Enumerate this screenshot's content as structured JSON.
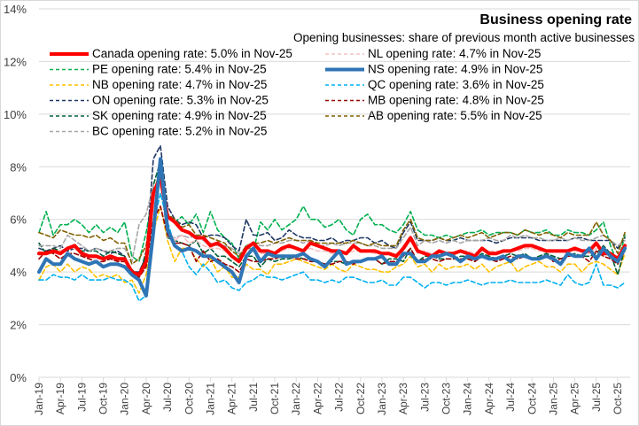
{
  "chart_data": {
    "type": "line",
    "title": "Business opening rate",
    "subtitle": "Opening businesses: share of previous month active businesses",
    "xlabel": "",
    "ylabel": "",
    "ylim": [
      0,
      14
    ],
    "y_ticks": [
      0,
      2,
      4,
      6,
      8,
      10,
      12,
      14
    ],
    "y_tick_labels": [
      "0%",
      "2%",
      "4%",
      "6%",
      "8%",
      "10%",
      "12%",
      "14%"
    ],
    "x_start": "Jan-19",
    "x_end": "Nov-25",
    "n_points": 83,
    "x_tick_labels": [
      "Jan-19",
      "Apr-19",
      "Jul-19",
      "Oct-19",
      "Jan-20",
      "Apr-20",
      "Jul-20",
      "Oct-20",
      "Jan-21",
      "Apr-21",
      "Jul-21",
      "Oct-21",
      "Jan-22",
      "Apr-22",
      "Jul-22",
      "Oct-22",
      "Jan-23",
      "Apr-23",
      "Jul-23",
      "Oct-23",
      "Jan-24",
      "Apr-24",
      "Jul-24",
      "Oct-24",
      "Jan-25",
      "Apr-25",
      "Jul-25",
      "Oct-25"
    ],
    "x_tick_every": 3,
    "grid": true,
    "legend_position": "top",
    "series": [
      {
        "name": "Canada opening rate: 5.0% in Nov-25",
        "color": "#ff0000",
        "style": "solid",
        "weight": "thick",
        "values": [
          4.7,
          4.7,
          4.8,
          4.7,
          4.9,
          5.0,
          4.7,
          4.6,
          4.6,
          4.5,
          4.6,
          4.5,
          4.5,
          4.0,
          3.9,
          4.4,
          7.0,
          7.6,
          6.1,
          5.9,
          5.6,
          5.5,
          5.3,
          5.3,
          5.0,
          5.1,
          4.9,
          4.6,
          4.4,
          4.9,
          5.1,
          4.8,
          4.8,
          4.7,
          4.9,
          5.0,
          4.9,
          4.8,
          5.1,
          5.0,
          4.9,
          4.8,
          4.8,
          4.7,
          5.0,
          4.8,
          4.8,
          4.8,
          4.7,
          4.7,
          4.6,
          4.9,
          5.3,
          4.8,
          4.7,
          4.6,
          4.8,
          4.7,
          4.7,
          4.8,
          4.7,
          4.6,
          4.9,
          4.7,
          4.7,
          4.8,
          4.8,
          4.9,
          5.0,
          5.0,
          4.9,
          4.8,
          4.8,
          4.8,
          4.8,
          4.9,
          4.8,
          4.8,
          5.1,
          4.7,
          4.7,
          4.5,
          5.0
        ]
      },
      {
        "name": "PE opening rate: 5.4% in Nov-25",
        "color": "#00b050",
        "style": "dashed",
        "weight": "thin",
        "values": [
          5.5,
          6.3,
          5.4,
          5.8,
          5.8,
          6.0,
          5.8,
          5.5,
          5.8,
          5.5,
          5.7,
          5.5,
          5.9,
          4.6,
          4.4,
          5.5,
          7.0,
          7.6,
          6.2,
          5.9,
          6.1,
          5.8,
          6.2,
          5.5,
          6.3,
          5.6,
          5.3,
          5.1,
          4.5,
          5.0,
          4.8,
          5.9,
          5.6,
          6.0,
          5.6,
          5.8,
          6.0,
          6.5,
          6.0,
          6.0,
          5.7,
          5.8,
          6.0,
          5.6,
          5.4,
          6.0,
          6.2,
          5.8,
          5.8,
          5.6,
          5.5,
          5.8,
          6.3,
          5.6,
          5.4,
          5.4,
          5.3,
          5.4,
          5.3,
          5.4,
          5.5,
          5.5,
          5.6,
          5.4,
          5.5,
          5.5,
          5.5,
          5.4,
          5.6,
          5.5,
          5.5,
          5.6,
          5.4,
          5.4,
          5.6,
          5.5,
          5.5,
          5.4,
          5.6,
          5.9,
          5.0,
          4.3,
          5.4
        ]
      },
      {
        "name": "NB opening rate: 4.7% in Nov-25",
        "color": "#ffc000",
        "style": "dashed",
        "weight": "thin",
        "values": [
          3.7,
          4.2,
          4.3,
          4.0,
          4.3,
          4.0,
          4.2,
          4.1,
          3.8,
          3.9,
          3.8,
          3.9,
          3.6,
          3.7,
          3.2,
          3.9,
          5.5,
          6.5,
          5.2,
          4.4,
          4.9,
          4.9,
          4.5,
          4.2,
          4.5,
          4.0,
          4.2,
          3.8,
          3.8,
          4.3,
          4.1,
          4.1,
          3.9,
          4.3,
          4.3,
          4.4,
          4.5,
          4.4,
          4.3,
          4.2,
          4.1,
          4.3,
          4.1,
          4.0,
          4.3,
          4.2,
          4.1,
          4.1,
          4.0,
          4.0,
          4.2,
          4.3,
          4.6,
          4.2,
          4.3,
          4.0,
          4.3,
          4.1,
          4.2,
          4.2,
          4.3,
          4.1,
          4.3,
          4.0,
          4.2,
          4.3,
          4.4,
          4.0,
          4.2,
          4.3,
          4.4,
          4.2,
          4.2,
          4.0,
          4.3,
          4.3,
          4.0,
          4.3,
          4.4,
          4.3,
          4.1,
          3.9,
          4.7
        ]
      },
      {
        "name": "ON opening rate: 5.3% in Nov-25",
        "color": "#1f3864",
        "style": "dashed",
        "weight": "thin",
        "values": [
          4.9,
          4.8,
          4.9,
          5.0,
          4.8,
          4.9,
          4.9,
          4.8,
          4.9,
          4.8,
          4.7,
          4.8,
          4.6,
          4.0,
          4.0,
          4.6,
          8.3,
          8.8,
          6.5,
          6.0,
          5.8,
          5.9,
          5.8,
          5.3,
          5.4,
          5.4,
          5.3,
          5.0,
          4.8,
          6.0,
          5.4,
          5.4,
          5.5,
          5.2,
          5.3,
          5.6,
          5.4,
          5.3,
          5.3,
          5.2,
          5.2,
          5.3,
          5.1,
          5.2,
          5.2,
          5.3,
          5.3,
          5.1,
          5.2,
          5.0,
          4.9,
          5.5,
          5.9,
          5.2,
          5.2,
          5.2,
          5.3,
          5.2,
          5.2,
          5.3,
          5.2,
          5.2,
          5.2,
          5.2,
          5.1,
          5.2,
          5.3,
          5.3,
          5.3,
          5.3,
          5.2,
          5.2,
          5.2,
          5.2,
          5.2,
          5.3,
          5.3,
          5.2,
          5.2,
          5.2,
          5.2,
          4.9,
          5.3
        ]
      },
      {
        "name": "SK opening rate: 4.9% in Nov-25",
        "color": "#00603a",
        "style": "dashed",
        "weight": "thin",
        "values": [
          5.1,
          4.7,
          4.9,
          4.8,
          4.9,
          4.9,
          4.8,
          4.8,
          4.8,
          4.6,
          4.8,
          4.7,
          4.6,
          4.0,
          3.8,
          4.8,
          7.3,
          8.2,
          5.3,
          5.2,
          5.1,
          5.0,
          5.2,
          4.7,
          4.9,
          4.6,
          4.6,
          4.4,
          4.2,
          4.6,
          4.6,
          4.2,
          4.5,
          4.4,
          4.5,
          4.5,
          4.6,
          4.5,
          4.5,
          4.4,
          4.3,
          4.4,
          4.4,
          4.3,
          4.4,
          4.4,
          4.5,
          4.5,
          4.3,
          4.5,
          4.5,
          4.4,
          4.9,
          4.4,
          4.6,
          4.6,
          4.5,
          4.5,
          4.5,
          4.6,
          4.6,
          4.5,
          4.7,
          4.6,
          4.5,
          4.6,
          4.7,
          4.6,
          4.7,
          4.5,
          4.6,
          4.7,
          4.6,
          4.5,
          4.6,
          4.7,
          4.6,
          4.6,
          4.7,
          5.0,
          4.7,
          3.9,
          4.9
        ]
      },
      {
        "name": "BC opening rate: 5.2% in Nov-25",
        "color": "#a6a6a6",
        "style": "dashed",
        "weight": "thin",
        "values": [
          5.0,
          5.0,
          5.0,
          4.9,
          5.4,
          5.2,
          5.0,
          4.8,
          4.9,
          4.8,
          4.8,
          4.9,
          4.9,
          4.4,
          5.8,
          6.2,
          7.3,
          7.4,
          5.3,
          5.3,
          5.4,
          5.3,
          5.4,
          5.2,
          5.1,
          5.0,
          5.0,
          4.9,
          4.7,
          4.8,
          5.1,
          5.0,
          5.0,
          5.1,
          5.1,
          5.2,
          5.2,
          5.1,
          5.2,
          5.0,
          5.0,
          5.1,
          5.0,
          5.1,
          5.1,
          5.1,
          5.0,
          5.0,
          4.9,
          4.9,
          4.9,
          5.3,
          5.7,
          5.0,
          5.2,
          5.1,
          5.2,
          5.1,
          5.2,
          5.1,
          5.2,
          5.2,
          5.2,
          5.3,
          5.2,
          5.2,
          5.4,
          5.3,
          5.4,
          5.3,
          5.3,
          5.2,
          5.2,
          5.3,
          5.2,
          5.3,
          5.2,
          5.2,
          5.3,
          5.4,
          5.2,
          5.0,
          5.2
        ]
      },
      {
        "name": "NL opening rate: 4.7% in Nov-25",
        "color": "#f4c2c2",
        "style": "dashed",
        "weight": "thin",
        "values": [
          4.8,
          4.7,
          4.8,
          4.8,
          4.9,
          4.9,
          4.6,
          4.6,
          4.5,
          4.5,
          4.5,
          4.4,
          4.5,
          4.0,
          3.8,
          4.3,
          6.8,
          7.3,
          5.7,
          5.2,
          5.4,
          5.1,
          5.2,
          5.0,
          4.9,
          4.9,
          4.8,
          4.6,
          4.4,
          4.8,
          4.9,
          4.7,
          4.7,
          4.7,
          4.8,
          4.9,
          4.9,
          4.8,
          4.9,
          4.8,
          4.8,
          4.7,
          4.7,
          4.7,
          4.8,
          4.8,
          4.8,
          4.7,
          4.7,
          4.7,
          4.7,
          4.8,
          5.2,
          4.7,
          4.8,
          4.7,
          4.7,
          4.7,
          4.7,
          4.8,
          4.8,
          4.7,
          4.8,
          4.8,
          4.8,
          4.8,
          4.8,
          4.8,
          4.9,
          4.9,
          4.8,
          4.8,
          4.8,
          4.8,
          4.8,
          4.8,
          4.8,
          4.7,
          4.9,
          4.8,
          4.7,
          4.6,
          4.7
        ]
      },
      {
        "name": "NS opening rate: 4.9% in Nov-25",
        "color": "#2e75b6",
        "style": "solid",
        "weight": "thick",
        "values": [
          4.0,
          4.5,
          4.3,
          4.3,
          4.7,
          4.5,
          4.4,
          4.3,
          4.4,
          4.2,
          4.3,
          4.3,
          4.2,
          3.9,
          3.7,
          3.1,
          5.5,
          8.3,
          5.6,
          5.0,
          4.8,
          4.9,
          4.8,
          4.6,
          4.6,
          4.4,
          4.2,
          4.0,
          3.6,
          4.6,
          4.9,
          4.4,
          4.7,
          4.6,
          4.6,
          4.6,
          4.6,
          4.7,
          4.5,
          4.4,
          4.2,
          4.5,
          4.8,
          4.3,
          4.4,
          4.4,
          4.5,
          4.5,
          4.6,
          4.3,
          4.3,
          4.7,
          4.7,
          4.4,
          4.4,
          4.6,
          4.6,
          4.7,
          4.6,
          4.4,
          4.6,
          4.5,
          4.6,
          4.5,
          4.5,
          4.6,
          4.4,
          4.6,
          4.6,
          4.5,
          4.5,
          4.6,
          4.5,
          4.3,
          4.7,
          4.6,
          4.6,
          4.9,
          4.5,
          4.9,
          4.6,
          4.4,
          4.9
        ]
      },
      {
        "name": "QC opening rate: 3.6% in Nov-25",
        "color": "#00b0f0",
        "style": "dashed",
        "weight": "thin",
        "values": [
          3.7,
          3.7,
          3.9,
          3.8,
          3.8,
          3.7,
          3.9,
          3.7,
          3.7,
          3.7,
          3.8,
          3.7,
          3.7,
          3.5,
          2.9,
          3.1,
          5.8,
          7.0,
          5.9,
          5.0,
          4.8,
          4.2,
          3.9,
          4.3,
          4.0,
          3.6,
          3.7,
          3.4,
          3.3,
          3.6,
          3.7,
          3.9,
          3.8,
          3.8,
          3.7,
          3.8,
          3.9,
          4.0,
          3.7,
          3.7,
          3.6,
          3.7,
          3.6,
          3.8,
          3.8,
          3.7,
          3.6,
          3.6,
          3.7,
          3.5,
          3.5,
          3.8,
          3.8,
          3.6,
          3.4,
          3.6,
          3.6,
          3.5,
          3.6,
          3.6,
          3.7,
          3.6,
          3.5,
          3.6,
          3.6,
          3.6,
          3.7,
          3.6,
          3.6,
          3.6,
          3.6,
          3.7,
          3.6,
          3.5,
          3.9,
          3.6,
          3.5,
          3.6,
          4.3,
          3.5,
          3.5,
          3.4,
          3.6
        ]
      },
      {
        "name": "MB opening rate: 4.8% in Nov-25",
        "color": "#990000",
        "style": "dashed",
        "weight": "thin",
        "values": [
          4.5,
          4.8,
          4.7,
          4.5,
          4.7,
          4.7,
          4.6,
          4.5,
          4.4,
          4.4,
          4.5,
          4.4,
          4.4,
          4.1,
          3.8,
          4.2,
          6.0,
          6.5,
          5.4,
          5.1,
          5.1,
          5.0,
          4.4,
          4.8,
          4.4,
          4.5,
          4.3,
          4.2,
          4.0,
          4.5,
          4.4,
          4.4,
          4.5,
          4.5,
          4.6,
          4.6,
          4.5,
          4.5,
          4.4,
          4.4,
          4.3,
          4.3,
          4.4,
          4.4,
          4.3,
          4.4,
          4.5,
          4.5,
          4.3,
          4.4,
          4.4,
          4.6,
          4.9,
          4.4,
          4.5,
          4.5,
          4.4,
          4.5,
          4.5,
          4.5,
          4.5,
          4.4,
          4.6,
          4.5,
          4.4,
          4.5,
          4.6,
          4.5,
          4.6,
          4.5,
          4.5,
          4.6,
          4.4,
          4.5,
          4.6,
          4.6,
          4.6,
          4.4,
          4.8,
          4.6,
          4.5,
          4.3,
          4.8
        ]
      },
      {
        "name": "AB opening rate: 5.5% in Nov-25",
        "color": "#806000",
        "style": "dashed",
        "weight": "thin",
        "values": [
          5.5,
          5.4,
          5.3,
          5.6,
          5.5,
          5.4,
          5.4,
          5.3,
          5.4,
          5.2,
          5.3,
          5.1,
          5.1,
          4.3,
          4.5,
          5.0,
          7.0,
          7.9,
          6.2,
          6.0,
          5.7,
          5.8,
          5.4,
          5.4,
          5.3,
          5.2,
          5.1,
          4.8,
          4.6,
          5.0,
          5.1,
          5.1,
          5.2,
          5.1,
          5.2,
          5.3,
          5.2,
          5.2,
          5.2,
          5.1,
          5.1,
          5.1,
          5.1,
          5.1,
          5.2,
          5.1,
          5.0,
          5.1,
          5.0,
          5.0,
          5.0,
          5.6,
          6.0,
          5.3,
          5.2,
          5.2,
          5.3,
          5.2,
          5.3,
          5.4,
          5.3,
          5.4,
          5.5,
          5.3,
          5.4,
          5.5,
          5.5,
          5.4,
          5.6,
          5.5,
          5.4,
          5.5,
          5.4,
          5.3,
          5.5,
          5.4,
          5.4,
          5.4,
          5.9,
          5.4,
          5.2,
          4.7,
          5.5
        ]
      }
    ]
  }
}
